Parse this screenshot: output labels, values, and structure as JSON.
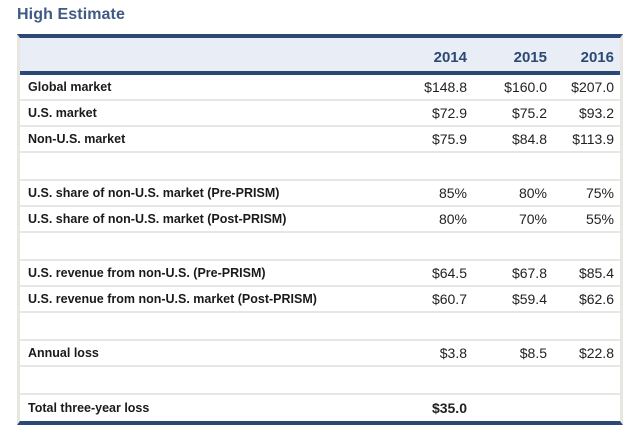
{
  "title": "High Estimate",
  "table": {
    "columns": [
      "",
      "2014",
      "2015",
      "2016"
    ],
    "rows": [
      {
        "label": "Global market",
        "values": [
          "$148.8",
          "$160.0",
          "$207.0"
        ]
      },
      {
        "label": "U.S. market",
        "values": [
          "$72.9",
          "$75.2",
          "$93.2"
        ]
      },
      {
        "label": "Non-U.S. market",
        "values": [
          "$75.9",
          "$84.8",
          "$113.9"
        ]
      },
      {
        "label": "",
        "values": [
          "",
          "",
          ""
        ]
      },
      {
        "label": "U.S. share of non-U.S. market (Pre-PRISM)",
        "values": [
          "85%",
          "80%",
          "75%"
        ]
      },
      {
        "label": "U.S. share of non-U.S. market (Post-PRISM)",
        "values": [
          "80%",
          "70%",
          "55%"
        ]
      },
      {
        "label": "",
        "values": [
          "",
          "",
          ""
        ]
      },
      {
        "label": "U.S. revenue from non-U.S. (Pre-PRISM)",
        "values": [
          "$64.5",
          "$67.8",
          "$85.4"
        ]
      },
      {
        "label": "U.S. revenue from non-U.S. market (Post-PRISM)",
        "values": [
          "$60.7",
          "$59.4",
          "$62.6"
        ]
      },
      {
        "label": "",
        "values": [
          "",
          "",
          ""
        ]
      },
      {
        "label": "Annual loss",
        "values": [
          "$3.8",
          "$8.5",
          "$22.8"
        ]
      },
      {
        "label": "",
        "values": [
          "",
          "",
          ""
        ]
      },
      {
        "label": "Total three-year loss",
        "values": [
          "$35.0",
          "",
          ""
        ]
      }
    ]
  },
  "colors": {
    "accent": "#2b4a73",
    "title": "#3f5a84",
    "header_bg": "#e9edf6",
    "row_border": "#e8e6e1"
  }
}
